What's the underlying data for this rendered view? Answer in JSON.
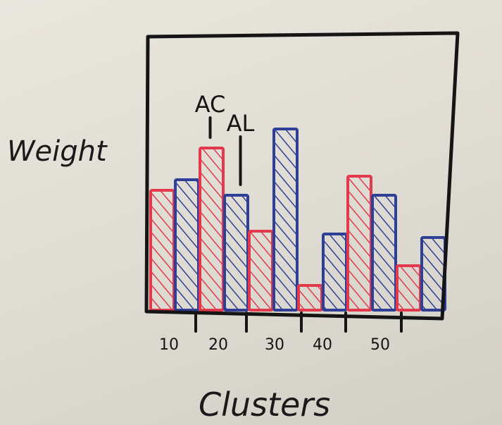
{
  "chart_data": {
    "type": "bar",
    "xlabel": "Clusters",
    "ylabel": "Weight",
    "x_ticks": [
      "10",
      "20",
      "30",
      "40",
      "50"
    ],
    "series": [
      {
        "color": "#e23a4c",
        "values": [
          170,
          230,
          null,
          112,
          null,
          35,
          190,
          null,
          63
        ]
      },
      {
        "color": "#2f3f96",
        "values": [
          null,
          185,
          null,
          163,
          257,
          null,
          108,
          163,
          103
        ]
      }
    ],
    "bars": [
      {
        "color": "#e23a4c",
        "value": 170
      },
      {
        "color": "#2f3f96",
        "value": 185
      },
      {
        "color": "#e23a4c",
        "value": 230
      },
      {
        "color": "#2f3f96",
        "value": 163
      },
      {
        "color": "#e23a4c",
        "value": 112
      },
      {
        "color": "#2f3f96",
        "value": 257
      },
      {
        "color": "#e23a4c",
        "value": 35
      },
      {
        "color": "#2f3f96",
        "value": 108
      },
      {
        "color": "#e23a4c",
        "value": 190
      },
      {
        "color": "#2f3f96",
        "value": 163
      },
      {
        "color": "#e23a4c",
        "value": 63
      },
      {
        "color": "#2f3f96",
        "value": 103
      }
    ],
    "annotations": [
      {
        "text": "AC",
        "bar_index": 2
      },
      {
        "text": "AL",
        "bar_index": 3
      }
    ],
    "grid": false,
    "legend": "none"
  }
}
